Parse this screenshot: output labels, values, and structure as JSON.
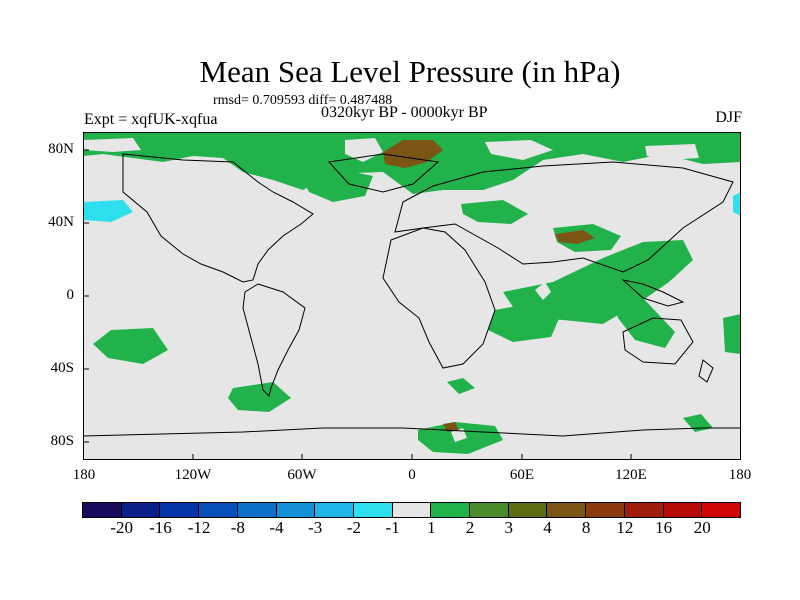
{
  "title": "Mean Sea Level Pressure (in hPa)",
  "stats": "rmsd= 0.709593 diff= 0.487488",
  "expt": "Expt = xqfUK-xqfua",
  "period": "0320kyr BP - 0000kyr BP",
  "season": "DJF",
  "lat_labels": [
    "80N",
    "40N",
    "0",
    "40S",
    "80S"
  ],
  "lon_labels": [
    "180",
    "120W",
    "60W",
    "0",
    "60E",
    "120E",
    "180"
  ],
  "colorbar": {
    "labels": [
      "-20",
      "-16",
      "-12",
      "-8",
      "-4",
      "-3",
      "-2",
      "-1",
      "1",
      "2",
      "3",
      "4",
      "8",
      "12",
      "16",
      "20"
    ],
    "colors": [
      "#1a0a5e",
      "#0b1f8a",
      "#0535a8",
      "#0650b8",
      "#0b70c8",
      "#1590d8",
      "#20b4e8",
      "#2ee0ee",
      "#e6e6e6",
      "#21b24b",
      "#4b8a2a",
      "#5e6c14",
      "#7a5514",
      "#8c3a10",
      "#a01e0c",
      "#b80c08",
      "#d00606"
    ]
  },
  "palette": {
    "background": "#e6e6e6",
    "green": "#21b24b",
    "brown": "#7a5514",
    "cyan": "#2ee0ee",
    "coast": "#000000"
  }
}
